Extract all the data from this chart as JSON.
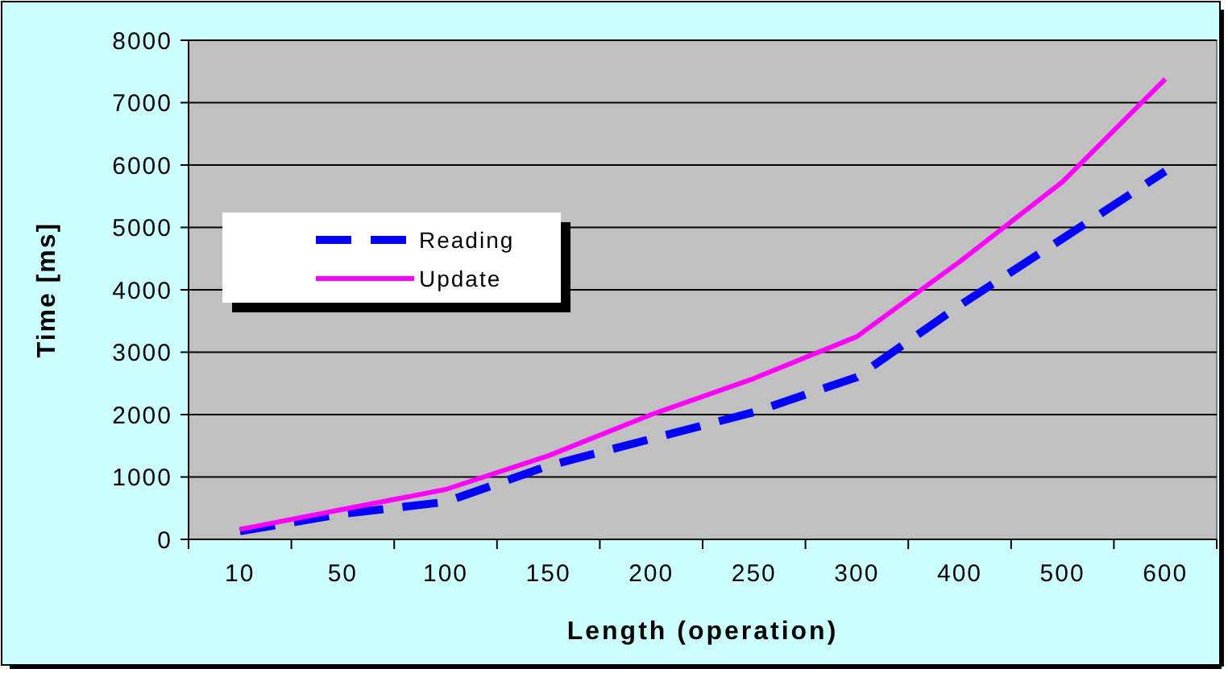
{
  "chart_data": {
    "type": "line",
    "xlabel": "Length (operation)",
    "ylabel": "Time [ms]",
    "categories": [
      "10",
      "50",
      "100",
      "150",
      "200",
      "250",
      "300",
      "400",
      "500",
      "600"
    ],
    "series": [
      {
        "name": "Reading",
        "color": "#0000ff",
        "line_style": "dashed",
        "values": [
          130,
          410,
          600,
          1180,
          1610,
          2040,
          2600,
          3750,
          4820,
          5900
        ]
      },
      {
        "name": "Update",
        "color": "#ff00ff",
        "line_style": "solid",
        "values": [
          160,
          480,
          800,
          1340,
          2000,
          2580,
          3250,
          4450,
          5730,
          7380
        ]
      }
    ],
    "ylim": [
      0,
      8000
    ],
    "yticks": [
      0,
      1000,
      2000,
      3000,
      4000,
      5000,
      6000,
      7000,
      8000
    ],
    "grid": "y",
    "legend": "left",
    "marker": "none"
  }
}
